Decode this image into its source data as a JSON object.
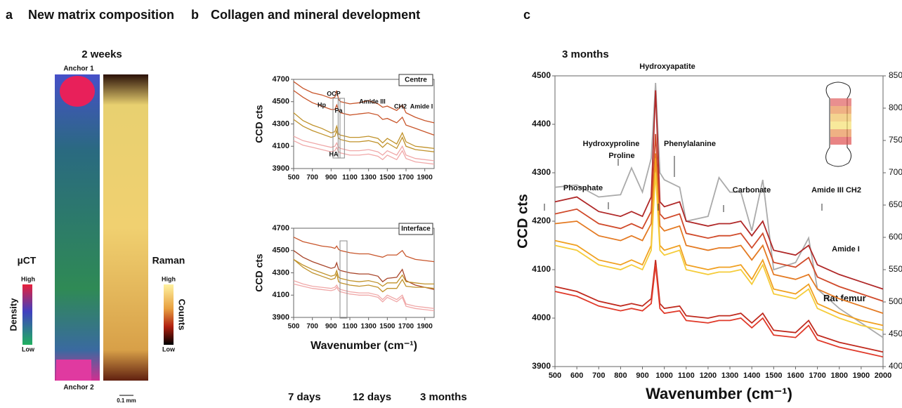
{
  "panel_a": {
    "label": "a",
    "title": "New matrix composition",
    "subtitle": "2 weeks",
    "anchor_top": "Anchor 1",
    "anchor_bottom": "Anchor 2",
    "scale_bar": "0.1 mm",
    "uct": {
      "title": "µCT",
      "high": "High",
      "low": "Low",
      "axis": "Density"
    },
    "raman": {
      "title": "Raman",
      "high": "High",
      "low": "Low",
      "axis": "Counts"
    }
  },
  "panel_b": {
    "label": "b",
    "title": "Collagen and mineral development",
    "legend": [
      {
        "name": "7 days",
        "color": "#c0922a"
      },
      {
        "name": "12 days",
        "color": "#a8452a"
      },
      {
        "name": "3 months",
        "color": "#eba5a5"
      }
    ]
  },
  "panel_c": {
    "label": "c",
    "subtitle": "3 months"
  },
  "chart_data": [
    {
      "type": "line",
      "ylabel": "CCD cts",
      "box_label": "Centre",
      "annotations": [
        "OCP",
        "Hp",
        "Pa",
        "Amide III",
        "CH2",
        "Amide I",
        "HA"
      ],
      "xlim": [
        500,
        2000
      ],
      "ylim": [
        3900,
        4700
      ],
      "xticks": [
        500,
        700,
        900,
        1100,
        1300,
        1500,
        1700,
        1900
      ],
      "yticks": [
        3900,
        4100,
        4300,
        4500,
        4700
      ],
      "x": [
        500,
        600,
        700,
        800,
        900,
        940,
        960,
        980,
        1000,
        1100,
        1200,
        1300,
        1400,
        1450,
        1500,
        1600,
        1660,
        1700,
        1800,
        1900,
        2000
      ],
      "series": [
        {
          "color": "#c8552a",
          "values": [
            4680,
            4620,
            4580,
            4560,
            4530,
            4540,
            4600,
            4520,
            4500,
            4480,
            4490,
            4510,
            4480,
            4450,
            4460,
            4420,
            4470,
            4400,
            4360,
            4330,
            4310
          ]
        },
        {
          "color": "#c8552a",
          "values": [
            4600,
            4540,
            4490,
            4460,
            4430,
            4430,
            4470,
            4420,
            4400,
            4380,
            4390,
            4400,
            4380,
            4340,
            4350,
            4310,
            4360,
            4290,
            4260,
            4230,
            4200
          ]
        },
        {
          "color": "#c0922a",
          "values": [
            4400,
            4330,
            4290,
            4260,
            4220,
            4230,
            4280,
            4210,
            4200,
            4180,
            4180,
            4190,
            4170,
            4130,
            4170,
            4120,
            4220,
            4140,
            4100,
            4090,
            4080
          ]
        },
        {
          "color": "#c0922a",
          "values": [
            4340,
            4280,
            4240,
            4210,
            4180,
            4190,
            4240,
            4170,
            4160,
            4140,
            4140,
            4150,
            4130,
            4090,
            4130,
            4080,
            4180,
            4100,
            4070,
            4060,
            4050
          ]
        },
        {
          "color": "#f0a8a8",
          "values": [
            4190,
            4150,
            4130,
            4110,
            4090,
            4100,
            4130,
            4090,
            4080,
            4060,
            4060,
            4070,
            4050,
            4020,
            4060,
            4020,
            4100,
            4020,
            3990,
            3980,
            3970
          ]
        },
        {
          "color": "#f0a8a8",
          "values": [
            4150,
            4110,
            4090,
            4070,
            4050,
            4060,
            4090,
            4050,
            4040,
            4020,
            4020,
            4030,
            4010,
            3980,
            4020,
            3980,
            4060,
            3990,
            3960,
            3950,
            3940
          ]
        }
      ]
    },
    {
      "type": "line",
      "ylabel": "CCD cts",
      "xlabel": "Wavenumber (cm⁻¹)",
      "box_label": "Interface",
      "annotations": [],
      "xlim": [
        500,
        2000
      ],
      "ylim": [
        3900,
        4700
      ],
      "xticks": [
        500,
        700,
        900,
        1100,
        1300,
        1500,
        1700,
        1900
      ],
      "yticks": [
        3900,
        4100,
        4300,
        4500,
        4700
      ],
      "x": [
        500,
        600,
        700,
        800,
        900,
        940,
        960,
        980,
        1000,
        1100,
        1200,
        1300,
        1400,
        1450,
        1500,
        1600,
        1660,
        1700,
        1800,
        1900,
        2000
      ],
      "series": [
        {
          "color": "#c8552a",
          "values": [
            4620,
            4580,
            4560,
            4540,
            4530,
            4520,
            4540,
            4510,
            4500,
            4480,
            4470,
            4470,
            4450,
            4440,
            4460,
            4460,
            4500,
            4450,
            4420,
            4410,
            4400
          ]
        },
        {
          "color": "#a8452a",
          "values": [
            4500,
            4440,
            4400,
            4370,
            4340,
            4350,
            4390,
            4330,
            4320,
            4300,
            4290,
            4290,
            4270,
            4220,
            4250,
            4260,
            4330,
            4230,
            4190,
            4170,
            4150
          ]
        },
        {
          "color": "#c0922a",
          "values": [
            4420,
            4370,
            4330,
            4300,
            4270,
            4280,
            4320,
            4260,
            4250,
            4230,
            4220,
            4230,
            4210,
            4180,
            4210,
            4210,
            4280,
            4220,
            4210,
            4200,
            4200
          ]
        },
        {
          "color": "#c0922a",
          "values": [
            4420,
            4350,
            4300,
            4270,
            4240,
            4250,
            4290,
            4220,
            4210,
            4190,
            4180,
            4190,
            4170,
            4130,
            4160,
            4160,
            4240,
            4180,
            4170,
            4170,
            4160
          ]
        },
        {
          "color": "#f0a8a8",
          "values": [
            4230,
            4200,
            4180,
            4170,
            4160,
            4170,
            4190,
            4160,
            4150,
            4130,
            4120,
            4120,
            4100,
            4060,
            4100,
            4060,
            4100,
            4020,
            4000,
            3990,
            3980
          ]
        },
        {
          "color": "#f0a8a8",
          "values": [
            4200,
            4180,
            4160,
            4150,
            4140,
            4150,
            4170,
            4140,
            4130,
            4110,
            4100,
            4100,
            4080,
            4040,
            4080,
            4040,
            4080,
            4000,
            3980,
            3970,
            3960
          ]
        }
      ]
    },
    {
      "type": "line",
      "ylabel": "CCD cts",
      "xlabel": "Wavenumber (cm⁻¹)",
      "annotations": [
        "Hydroxyapatite",
        "Hydroxyproline",
        "Proline",
        "Phenylalanine",
        "Phosphate",
        "Carbonate",
        "Amide III",
        "CH2",
        "Amide I"
      ],
      "xlim": [
        500,
        2000
      ],
      "ylim": [
        3900,
        4500
      ],
      "y2lim": [
        4000,
        8500
      ],
      "xticks": [
        500,
        600,
        700,
        800,
        900,
        1000,
        1100,
        1200,
        1300,
        1400,
        1500,
        1600,
        1700,
        1800,
        1900,
        2000
      ],
      "yticks": [
        3900,
        4000,
        4100,
        4200,
        4300,
        4400,
        4500
      ],
      "y2ticks": [
        4000,
        4500,
        5000,
        5500,
        6000,
        6500,
        7000,
        7500,
        8000,
        8500
      ],
      "x": [
        500,
        600,
        700,
        800,
        850,
        900,
        940,
        960,
        980,
        1000,
        1070,
        1100,
        1200,
        1250,
        1300,
        1350,
        1400,
        1450,
        1500,
        1600,
        1660,
        1700,
        1800,
        1900,
        2000
      ],
      "series": [
        {
          "name": "Rat femur",
          "color": "#aaaaaa",
          "axis": "y2",
          "values": [
            6775,
            6810,
            6625,
            6660,
            7075,
            6700,
            7225,
            8390,
            7000,
            6890,
            6775,
            6250,
            6325,
            6925,
            6700,
            6700,
            6100,
            6890,
            5500,
            5610,
            5990,
            5200,
            4900,
            4675,
            4450
          ]
        },
        {
          "color": "#b02828",
          "values": [
            4240,
            4250,
            4220,
            4210,
            4220,
            4210,
            4250,
            4470,
            4240,
            4230,
            4240,
            4200,
            4190,
            4195,
            4195,
            4200,
            4170,
            4200,
            4140,
            4130,
            4150,
            4110,
            4090,
            4075,
            4060
          ]
        },
        {
          "color": "#d04a2a",
          "values": [
            4215,
            4225,
            4195,
            4185,
            4195,
            4185,
            4220,
            4380,
            4215,
            4205,
            4215,
            4175,
            4165,
            4170,
            4170,
            4175,
            4145,
            4175,
            4115,
            4105,
            4125,
            4085,
            4065,
            4050,
            4035
          ]
        },
        {
          "color": "#e47a22",
          "values": [
            4195,
            4200,
            4170,
            4160,
            4170,
            4160,
            4195,
            4340,
            4190,
            4180,
            4190,
            4150,
            4140,
            4145,
            4145,
            4150,
            4120,
            4150,
            4090,
            4080,
            4090,
            4060,
            4040,
            4025,
            4010
          ]
        },
        {
          "color": "#f0a020",
          "values": [
            4160,
            4150,
            4120,
            4110,
            4120,
            4110,
            4150,
            4330,
            4150,
            4140,
            4150,
            4110,
            4100,
            4105,
            4105,
            4110,
            4080,
            4120,
            4060,
            4050,
            4070,
            4030,
            4010,
            3995,
            3985
          ]
        },
        {
          "color": "#f5cc3a",
          "values": [
            4150,
            4140,
            4110,
            4100,
            4110,
            4100,
            4140,
            4300,
            4140,
            4130,
            4140,
            4100,
            4090,
            4095,
            4095,
            4100,
            4070,
            4110,
            4050,
            4040,
            4060,
            4020,
            4000,
            3985,
            3975
          ]
        },
        {
          "color": "#c02a1e",
          "values": [
            4065,
            4055,
            4035,
            4025,
            4030,
            4025,
            4040,
            4120,
            4030,
            4020,
            4025,
            4005,
            4000,
            4005,
            4005,
            4010,
            3990,
            4010,
            3975,
            3970,
            3995,
            3965,
            3950,
            3940,
            3930
          ]
        },
        {
          "color": "#e03a2a",
          "values": [
            4055,
            4045,
            4025,
            4015,
            4020,
            4015,
            4030,
            4110,
            4020,
            4010,
            4015,
            3995,
            3990,
            3995,
            3995,
            4000,
            3980,
            4000,
            3965,
            3960,
            3985,
            3955,
            3940,
            3930,
            3920
          ]
        }
      ]
    }
  ]
}
